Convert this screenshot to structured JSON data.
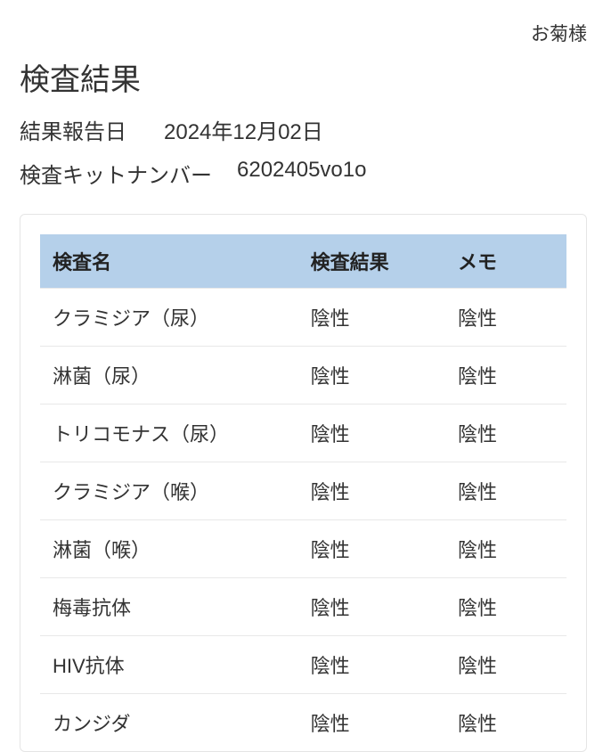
{
  "user_label": "お菊様",
  "title": "検査結果",
  "meta": {
    "report_date_label": "結果報告日",
    "report_date_value": "2024年12月02日",
    "kit_number_label": "検査キットナンバー",
    "kit_number_value": "6202405vo1o"
  },
  "table": {
    "headers": {
      "name": "検査名",
      "result": "検査結果",
      "memo": "メモ"
    },
    "header_bg": "#b5d0ea",
    "border_color": "#e8e8e8",
    "rows": [
      {
        "name": "クラミジア（尿）",
        "result": "陰性",
        "memo": "陰性"
      },
      {
        "name": "淋菌（尿）",
        "result": "陰性",
        "memo": "陰性"
      },
      {
        "name": "トリコモナス（尿）",
        "result": "陰性",
        "memo": "陰性"
      },
      {
        "name": "クラミジア（喉）",
        "result": "陰性",
        "memo": "陰性"
      },
      {
        "name": "淋菌（喉）",
        "result": "陰性",
        "memo": "陰性"
      },
      {
        "name": "梅毒抗体",
        "result": "陰性",
        "memo": "陰性"
      },
      {
        "name": "HIV抗体",
        "result": "陰性",
        "memo": "陰性"
      },
      {
        "name": "カンジダ",
        "result": "陰性",
        "memo": "陰性"
      }
    ]
  },
  "colors": {
    "text": "#333333",
    "background": "#ffffff"
  }
}
